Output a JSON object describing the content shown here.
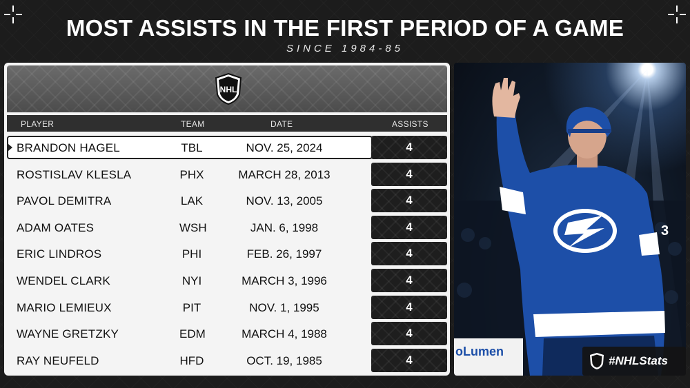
{
  "header": {
    "title": "MOST ASSISTS IN THE FIRST PERIOD OF A GAME",
    "subtitle": "SINCE 1984-85"
  },
  "table": {
    "columns": {
      "player": "PLAYER",
      "team": "TEAM",
      "date": "DATE",
      "assists": "ASSISTS"
    },
    "rows": [
      {
        "player": "BRANDON HAGEL",
        "team": "TBL",
        "date": "NOV. 25, 2024",
        "assists": "4"
      },
      {
        "player": "ROSTISLAV KLESLA",
        "team": "PHX",
        "date": "MARCH 28, 2013",
        "assists": "4"
      },
      {
        "player": "PAVOL DEMITRA",
        "team": "LAK",
        "date": "NOV. 13, 2005",
        "assists": "4"
      },
      {
        "player": "ADAM OATES",
        "team": "WSH",
        "date": "JAN. 6, 1998",
        "assists": "4"
      },
      {
        "player": "ERIC LINDROS",
        "team": "PHI",
        "date": "FEB. 26, 1997",
        "assists": "4"
      },
      {
        "player": "WENDEL CLARK",
        "team": "NYI",
        "date": "MARCH 3, 1996",
        "assists": "4"
      },
      {
        "player": "MARIO LEMIEUX",
        "team": "PIT",
        "date": "NOV. 1, 1995",
        "assists": "4"
      },
      {
        "player": "WAYNE GRETZKY",
        "team": "EDM",
        "date": "MARCH 4, 1988",
        "assists": "4"
      },
      {
        "player": "RAY NEUFELD",
        "team": "HFD",
        "date": "OCT. 19, 1985",
        "assists": "4"
      }
    ]
  },
  "logo": {
    "text": "NHL"
  },
  "photo": {
    "jersey_number": "3",
    "arena_sign": "oLumen"
  },
  "hashtag": "#NHLStats",
  "colors": {
    "background": "#1c1c1c",
    "panel": "#f4f4f4",
    "accent_dark": "#1e1e1e",
    "jersey_blue": "#1d4fa8"
  }
}
